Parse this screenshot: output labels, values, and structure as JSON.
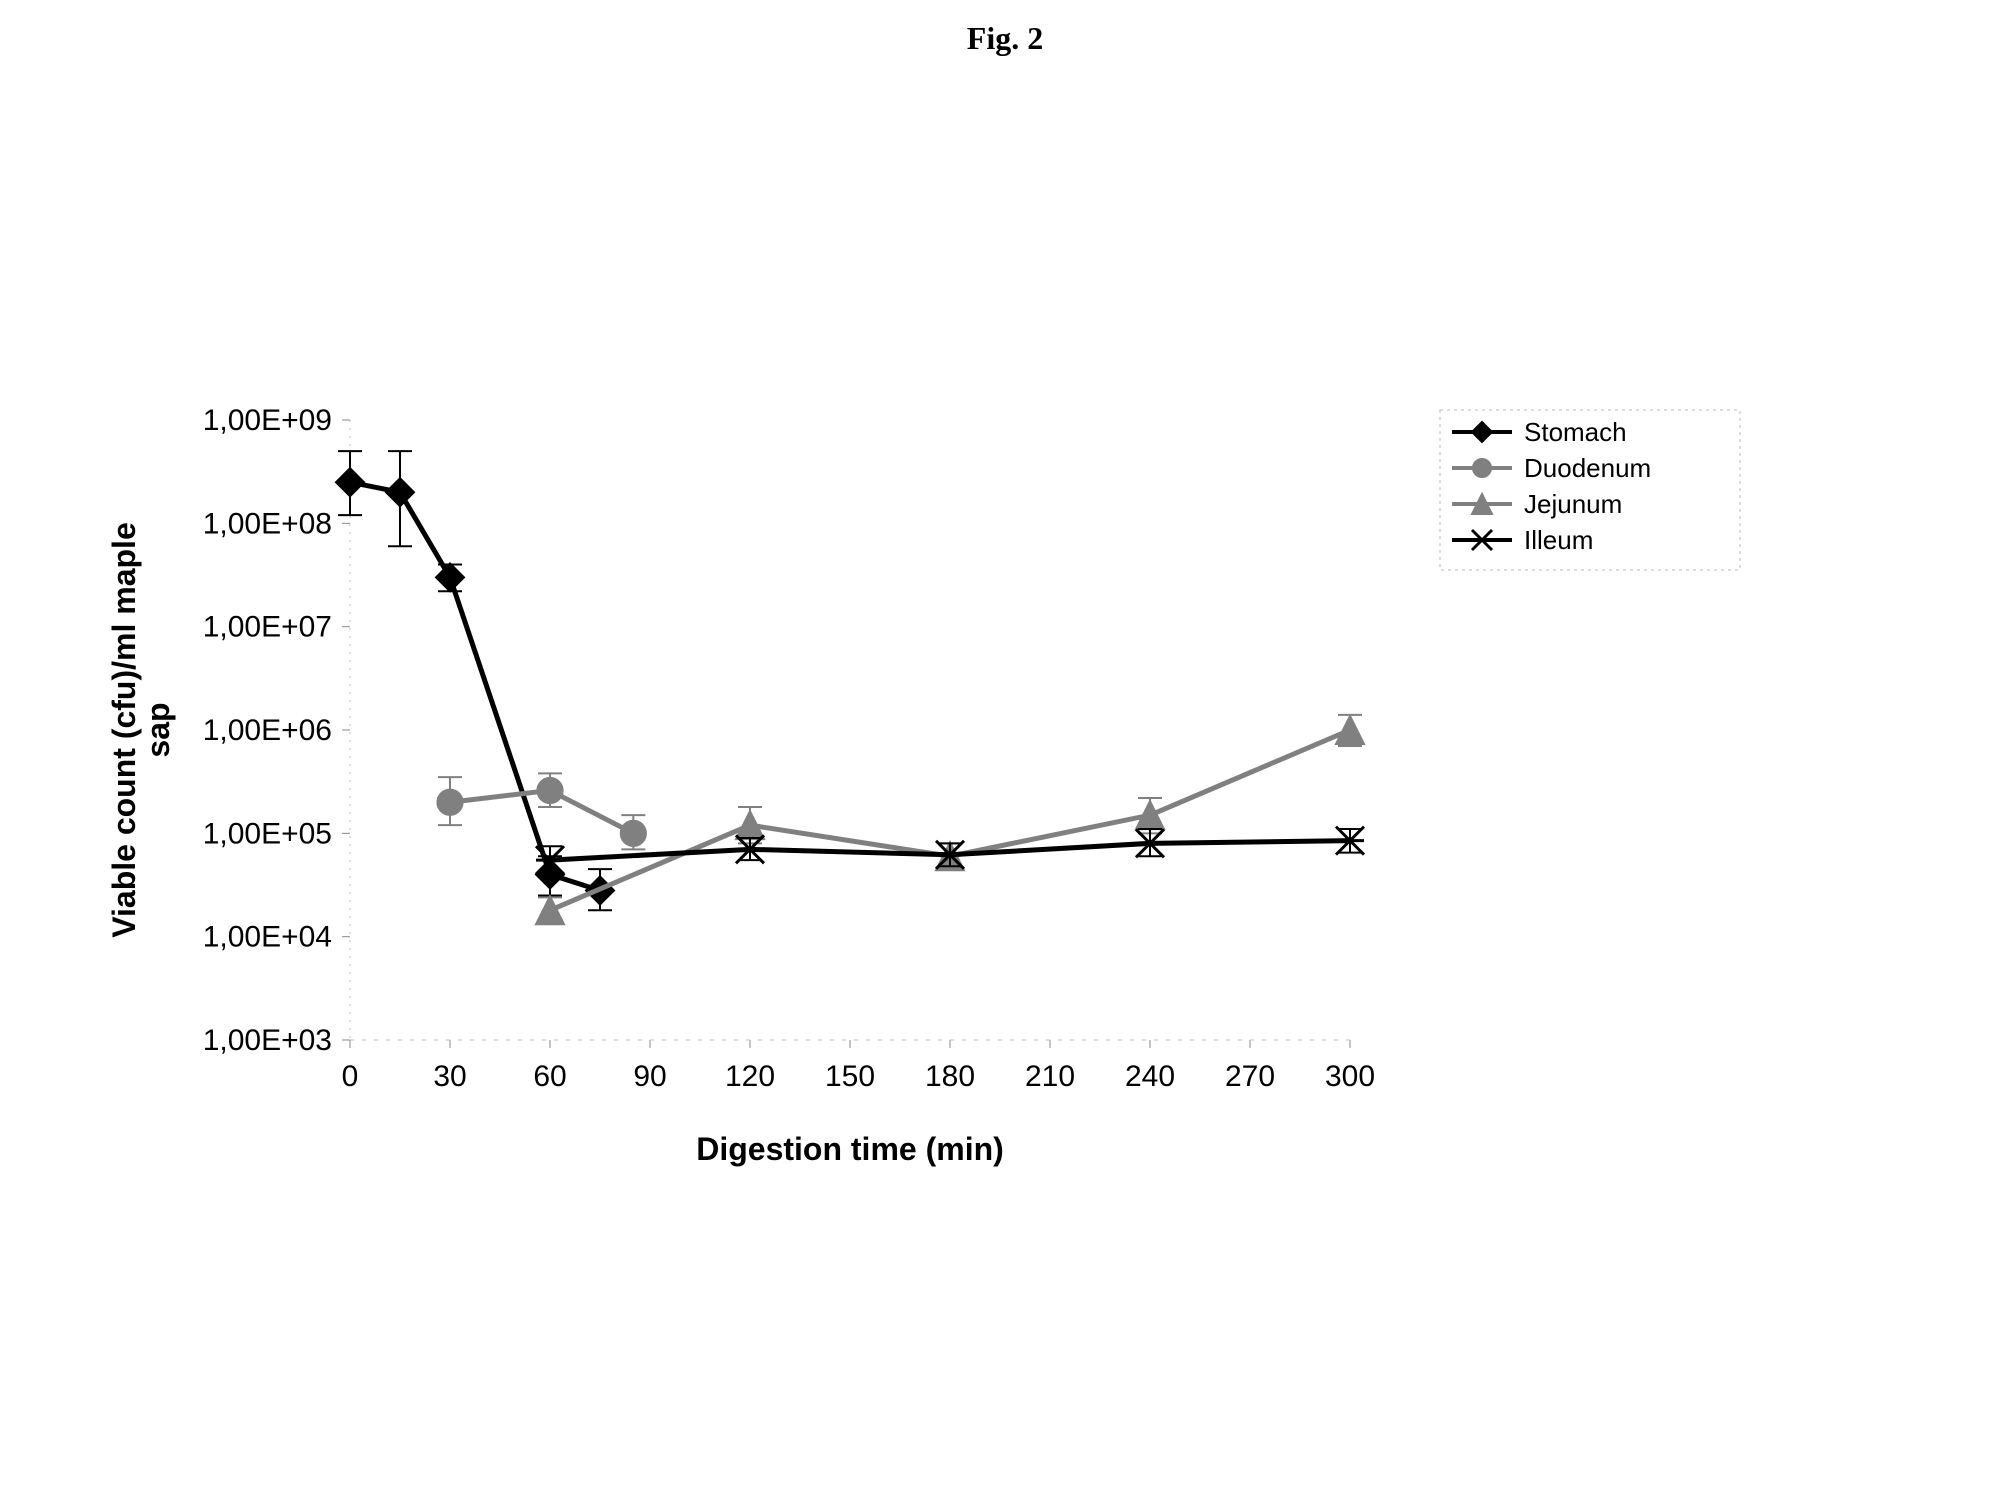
{
  "figure_title": "Fig. 2",
  "chart": {
    "type": "line",
    "title": "",
    "xlabel": "Digestion time (min)",
    "ylabel": "Viable count (cfu)/ml maple sap",
    "x": {
      "min": 0,
      "max": 300,
      "tick_step": 30,
      "ticks": [
        0,
        30,
        60,
        90,
        120,
        150,
        180,
        210,
        240,
        270,
        300
      ]
    },
    "y": {
      "scale": "log",
      "min": 1000,
      "max": 1000000000,
      "ticks": [
        1000,
        10000,
        100000,
        1000000,
        10000000,
        100000000,
        1000000000
      ],
      "tick_labels": [
        "1,00E+03",
        "1,00E+04",
        "1,00E+05",
        "1,00E+06",
        "1,00E+07",
        "1,00E+08",
        "1,00E+09"
      ]
    },
    "background_color": "#ffffff",
    "grid_color": "#cccccc",
    "grid": false,
    "axis_color": "#000000",
    "label_fontsize": 32,
    "tick_fontsize": 30,
    "line_width": 5,
    "marker_size": 14,
    "error_bar_width": 2,
    "error_cap": 12,
    "legend": {
      "position": "top-right-outside",
      "border_color": "#bbbbbb",
      "font_size": 26,
      "items": [
        {
          "label": "Stomach",
          "marker": "diamond",
          "color": "#000000",
          "line_color": "#000000"
        },
        {
          "label": "Duodenum",
          "marker": "circle",
          "color": "#808080",
          "line_color": "#808080"
        },
        {
          "label": "Jejunum",
          "marker": "triangle",
          "color": "#808080",
          "line_color": "#808080"
        },
        {
          "label": "Illeum",
          "marker": "x",
          "color": "#000000",
          "line_color": "#000000"
        }
      ]
    },
    "series": [
      {
        "name": "Stomach",
        "marker": "diamond",
        "color": "#000000",
        "line_color": "#000000",
        "points": [
          {
            "x": 0,
            "y": 250000000,
            "err_lo": 120000000,
            "err_hi": 500000000
          },
          {
            "x": 15,
            "y": 200000000,
            "err_lo": 60000000,
            "err_hi": 500000000
          },
          {
            "x": 30,
            "y": 30000000,
            "err_lo": 22000000,
            "err_hi": 40000000
          },
          {
            "x": 60,
            "y": 40000,
            "err_lo": 25000,
            "err_hi": 60000
          },
          {
            "x": 75,
            "y": 28000,
            "err_lo": 18000,
            "err_hi": 45000
          }
        ]
      },
      {
        "name": "Duodenum",
        "marker": "circle",
        "color": "#808080",
        "line_color": "#808080",
        "points": [
          {
            "x": 30,
            "y": 200000,
            "err_lo": 120000,
            "err_hi": 350000
          },
          {
            "x": 60,
            "y": 260000,
            "err_lo": 180000,
            "err_hi": 380000
          },
          {
            "x": 85,
            "y": 100000,
            "err_lo": 70000,
            "err_hi": 150000
          }
        ]
      },
      {
        "name": "Jejunum",
        "marker": "triangle",
        "color": "#808080",
        "line_color": "#808080",
        "points": [
          {
            "x": 60,
            "y": 18000,
            "err_lo": 14000,
            "err_hi": 24000
          },
          {
            "x": 120,
            "y": 120000,
            "err_lo": 80000,
            "err_hi": 180000
          },
          {
            "x": 180,
            "y": 60000,
            "err_lo": 45000,
            "err_hi": 80000
          },
          {
            "x": 240,
            "y": 150000,
            "err_lo": 100000,
            "err_hi": 220000
          },
          {
            "x": 300,
            "y": 1000000,
            "err_lo": 700000,
            "err_hi": 1400000
          }
        ]
      },
      {
        "name": "Illeum",
        "marker": "x",
        "color": "#000000",
        "line_color": "#000000",
        "points": [
          {
            "x": 60,
            "y": 55000,
            "err_lo": 40000,
            "err_hi": 75000
          },
          {
            "x": 120,
            "y": 70000,
            "err_lo": 55000,
            "err_hi": 90000
          },
          {
            "x": 180,
            "y": 62000,
            "err_lo": 48000,
            "err_hi": 80000
          },
          {
            "x": 240,
            "y": 80000,
            "err_lo": 60000,
            "err_hi": 110000
          },
          {
            "x": 300,
            "y": 85000,
            "err_lo": 65000,
            "err_hi": 110000
          }
        ]
      }
    ]
  }
}
